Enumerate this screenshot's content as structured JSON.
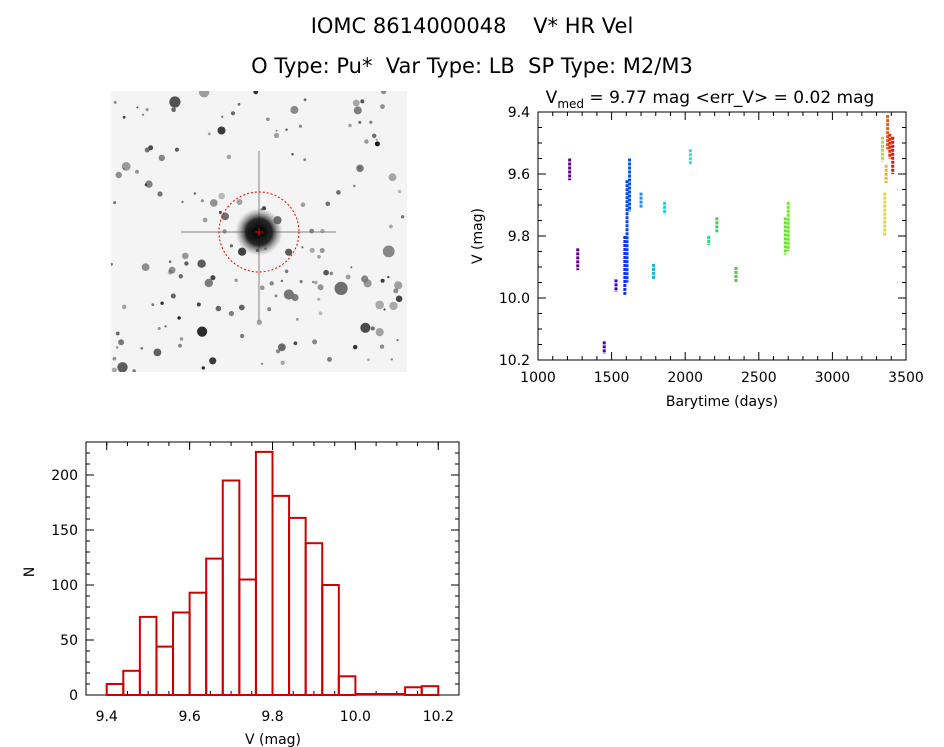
{
  "title": {
    "line1": "IOMC 8614000048    V* HR Vel",
    "line2": "O Type: Pu*  Var Type: LB  SP Type: M2/M3"
  },
  "chart_data": [
    {
      "type": "scatter",
      "title_main": "V",
      "title_sub": "med",
      "title_rest": " = 9.77 mag <err_V> = 0.02 mag",
      "xlabel": "Barytime (days)",
      "ylabel": "V (mag)",
      "xlim": [
        1000,
        3500
      ],
      "ylim": [
        10.2,
        9.4
      ],
      "xticks": [
        "1000",
        "1500",
        "2000",
        "2500",
        "3000",
        "3500"
      ],
      "yticks": [
        "9.4",
        "9.6",
        "9.8",
        "10.0",
        "10.2"
      ],
      "segments": [
        {
          "x": 1215,
          "y1": 9.55,
          "y2": 9.62,
          "color": "#5a0082"
        },
        {
          "x": 1270,
          "y1": 9.84,
          "y2": 9.91,
          "color": "#5a0082"
        },
        {
          "x": 1450,
          "y1": 10.14,
          "y2": 10.18,
          "color": "#5000aa"
        },
        {
          "x": 1530,
          "y1": 9.94,
          "y2": 9.98,
          "color": "#3c00c8"
        },
        {
          "x": 1590,
          "y1": 9.8,
          "y2": 9.99,
          "color": "#1432d2"
        },
        {
          "x": 1605,
          "y1": 9.62,
          "y2": 9.95,
          "color": "#0a46dc"
        },
        {
          "x": 1622,
          "y1": 9.55,
          "y2": 9.72,
          "color": "#0050e6"
        },
        {
          "x": 1700,
          "y1": 9.66,
          "y2": 9.71,
          "color": "#1e8cf0"
        },
        {
          "x": 1785,
          "y1": 9.89,
          "y2": 9.94,
          "color": "#14b4dc"
        },
        {
          "x": 1860,
          "y1": 9.69,
          "y2": 9.73,
          "color": "#19d2dc"
        },
        {
          "x": 2035,
          "y1": 9.52,
          "y2": 9.57,
          "color": "#28e6d2"
        },
        {
          "x": 2160,
          "y1": 9.8,
          "y2": 9.83,
          "color": "#2ddc78"
        },
        {
          "x": 2215,
          "y1": 9.74,
          "y2": 9.79,
          "color": "#3cd250"
        },
        {
          "x": 2345,
          "y1": 9.9,
          "y2": 9.95,
          "color": "#50c83c"
        },
        {
          "x": 2680,
          "y1": 9.74,
          "y2": 9.86,
          "color": "#64e628"
        },
        {
          "x": 2700,
          "y1": 9.69,
          "y2": 9.85,
          "color": "#78e632"
        },
        {
          "x": 3340,
          "y1": 9.48,
          "y2": 9.56,
          "color": "#b4dc28"
        },
        {
          "x": 3355,
          "y1": 9.66,
          "y2": 9.8,
          "color": "#e6dc1e"
        },
        {
          "x": 3365,
          "y1": 9.57,
          "y2": 9.63,
          "color": "#f0b41e"
        },
        {
          "x": 3375,
          "y1": 9.41,
          "y2": 9.52,
          "color": "#e65a14"
        },
        {
          "x": 3390,
          "y1": 9.47,
          "y2": 9.55,
          "color": "#dc3214"
        },
        {
          "x": 3410,
          "y1": 9.48,
          "y2": 9.6,
          "color": "#c81e14"
        }
      ]
    },
    {
      "type": "bar",
      "xlabel": "V (mag)",
      "ylabel": "N",
      "xlim": [
        9.35,
        10.25
      ],
      "ylim": [
        0,
        230
      ],
      "xticks": [
        "9.4",
        "9.6",
        "9.8",
        "10.0",
        "10.2"
      ],
      "yticks": [
        "0",
        "50",
        "100",
        "150",
        "200"
      ],
      "bin_width": 0.04,
      "bin_starts": [
        9.4,
        9.44,
        9.48,
        9.52,
        9.56,
        9.6,
        9.64,
        9.68,
        9.72,
        9.76,
        9.8,
        9.84,
        9.88,
        9.92,
        9.96,
        10.0,
        10.04,
        10.08,
        10.12,
        10.16
      ],
      "values": [
        10,
        22,
        71,
        44,
        75,
        93,
        124,
        195,
        105,
        221,
        181,
        161,
        138,
        100,
        17,
        0,
        0,
        0,
        7,
        8
      ],
      "color": "#cc0000"
    }
  ]
}
